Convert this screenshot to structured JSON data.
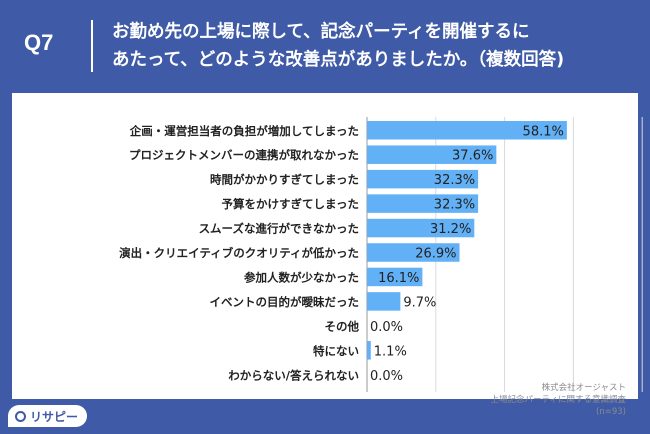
{
  "header": {
    "qnum": "Q7",
    "line1": "お勤め先の上場に際して、記念パーティを開催するに",
    "line2": "あたって、どのような改善点がありましたか。（複数回答)"
  },
  "source": {
    "company": "株式会社オージャスト",
    "survey": "上場記念パーティに関する意識調査",
    "n": "(n=93)"
  },
  "logo": {
    "text": "リサピー"
  },
  "colors": {
    "background": "#3f5aa6",
    "bar": "#62b0f5",
    "text": "#222222"
  },
  "chart_data": {
    "type": "bar",
    "orientation": "horizontal",
    "categories": [
      "企画・運営担当者の負担が増加してしまった",
      "プロジェクトメンバーの連携が取れなかった",
      "時間がかかりすぎてしまった",
      "予算をかけすぎてしまった",
      "スムーズな進行ができなかった",
      "演出・クリエイティブのクオリティが低かった",
      "参加人数が少なかった",
      "イベントの目的が曖昧だった",
      "その他",
      "特にない",
      "わからない/答えられない"
    ],
    "values": [
      58.1,
      37.6,
      32.3,
      32.3,
      31.2,
      26.9,
      16.1,
      9.7,
      0.0,
      1.1,
      0.0
    ],
    "labels": [
      "58.1%",
      "37.6%",
      "32.3%",
      "32.3%",
      "31.2%",
      "26.9%",
      "16.1%",
      "9.7%",
      "0.0%",
      "1.1%",
      "0.0%"
    ],
    "xlim": [
      0,
      100
    ],
    "grid": true
  }
}
